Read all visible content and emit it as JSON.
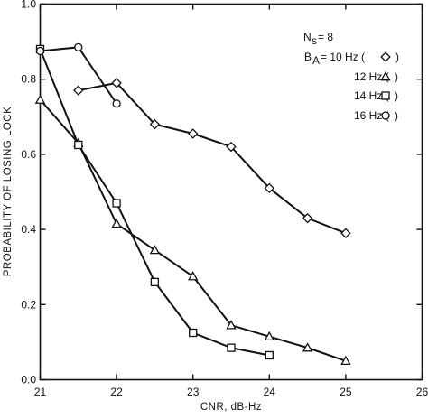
{
  "chart_data": {
    "type": "line",
    "xlabel": "CNR, dB-Hz",
    "ylabel": "PROBABILITY OF LOSING LOCK",
    "xlim": [
      21,
      26
    ],
    "ylim": [
      0.0,
      1.0
    ],
    "x_ticks": [
      "21",
      "22",
      "23",
      "24",
      "25",
      "26"
    ],
    "y_ticks": [
      "0.0",
      "0.2",
      "0.4",
      "0.6",
      "0.8",
      "1.0"
    ],
    "grid": false,
    "legend_placement": "top-right",
    "legend_header": [
      "N",
      "s",
      "= 8"
    ],
    "legend_param": [
      "B",
      "A",
      "= 10 Hz ("
    ],
    "series": [
      {
        "name": "10 Hz",
        "legend_label": "10 Hz (",
        "marker": "diamond",
        "x": [
          21.5,
          22.0,
          22.5,
          23.0,
          23.5,
          24.0,
          24.5,
          25.0
        ],
        "y": [
          0.77,
          0.79,
          0.68,
          0.655,
          0.62,
          0.51,
          0.43,
          0.39
        ]
      },
      {
        "name": "12 Hz",
        "legend_label": "12 Hz (",
        "marker": "triangle",
        "x": [
          21.0,
          21.5,
          22.0,
          22.5,
          23.0,
          23.5,
          24.0,
          24.5,
          25.0
        ],
        "y": [
          0.745,
          0.63,
          0.415,
          0.345,
          0.275,
          0.145,
          0.115,
          0.085,
          0.05
        ]
      },
      {
        "name": "14 Hz",
        "legend_label": "14 Hz (",
        "marker": "square",
        "x": [
          21.0,
          21.5,
          22.0,
          22.5,
          23.0,
          23.5,
          24.0
        ],
        "y": [
          0.88,
          0.625,
          0.47,
          0.26,
          0.125,
          0.085,
          0.065
        ]
      },
      {
        "name": "16 Hz",
        "legend_label": "16 Hz (",
        "marker": "circle",
        "x": [
          21.0,
          21.5,
          22.0
        ],
        "y": [
          0.875,
          0.885,
          0.735
        ]
      }
    ]
  }
}
